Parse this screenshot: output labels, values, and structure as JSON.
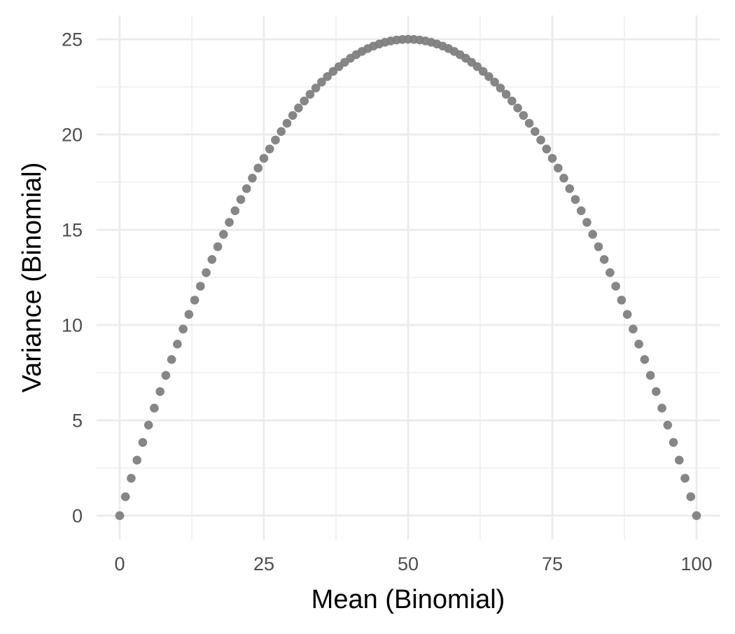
{
  "chart_data": {
    "type": "scatter",
    "title": "",
    "xlabel": "Mean (Binomial)",
    "ylabel": "Variance (Binomial)",
    "xlim": [
      -4,
      104
    ],
    "ylim": [
      -1.25,
      26.25
    ],
    "x_ticks": [
      0,
      25,
      50,
      75,
      100
    ],
    "x_tick_labels": [
      "0",
      "25",
      "50",
      "75",
      "100"
    ],
    "y_ticks": [
      0,
      5,
      10,
      15,
      20,
      25
    ],
    "y_tick_labels": [
      "0",
      "5",
      "10",
      "15",
      "20",
      "25"
    ],
    "grid": true,
    "legend": "none",
    "point_color": "#7f7f7f",
    "grid_color": "#ebebeb",
    "x": [
      0,
      1,
      2,
      3,
      4,
      5,
      6,
      7,
      8,
      9,
      10,
      11,
      12,
      13,
      14,
      15,
      16,
      17,
      18,
      19,
      20,
      21,
      22,
      23,
      24,
      25,
      26,
      27,
      28,
      29,
      30,
      31,
      32,
      33,
      34,
      35,
      36,
      37,
      38,
      39,
      40,
      41,
      42,
      43,
      44,
      45,
      46,
      47,
      48,
      49,
      50,
      51,
      52,
      53,
      54,
      55,
      56,
      57,
      58,
      59,
      60,
      61,
      62,
      63,
      64,
      65,
      66,
      67,
      68,
      69,
      70,
      71,
      72,
      73,
      74,
      75,
      76,
      77,
      78,
      79,
      80,
      81,
      82,
      83,
      84,
      85,
      86,
      87,
      88,
      89,
      90,
      91,
      92,
      93,
      94,
      95,
      96,
      97,
      98,
      99,
      100
    ],
    "y": [
      0,
      0.99,
      1.96,
      2.91,
      3.84,
      4.75,
      5.64,
      6.51,
      7.36,
      8.19,
      9,
      9.79,
      10.56,
      11.31,
      12.04,
      12.75,
      13.44,
      14.11,
      14.76,
      15.39,
      16,
      16.59,
      17.16,
      17.71,
      18.24,
      18.75,
      19.24,
      19.71,
      20.16,
      20.59,
      21,
      21.39,
      21.76,
      22.11,
      22.44,
      22.75,
      23.04,
      23.31,
      23.56,
      23.79,
      24,
      24.19,
      24.36,
      24.51,
      24.64,
      24.75,
      24.84,
      24.91,
      24.96,
      24.99,
      25,
      24.99,
      24.96,
      24.91,
      24.84,
      24.75,
      24.64,
      24.51,
      24.36,
      24.19,
      24,
      23.79,
      23.56,
      23.31,
      23.04,
      22.75,
      22.44,
      22.11,
      21.76,
      21.39,
      21,
      20.59,
      20.16,
      19.71,
      19.24,
      18.75,
      18.24,
      17.71,
      17.16,
      16.59,
      16,
      15.39,
      14.76,
      14.11,
      13.44,
      12.75,
      12.04,
      11.31,
      10.56,
      9.79,
      9,
      8.19,
      7.36,
      6.51,
      5.64,
      4.75,
      3.84,
      2.91,
      1.96,
      0.99,
      0
    ]
  }
}
